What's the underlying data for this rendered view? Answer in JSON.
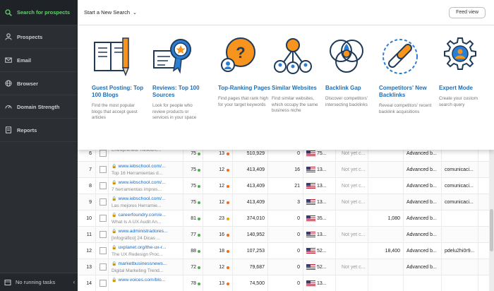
{
  "sidebar": {
    "items": [
      {
        "label": "Search for prospects",
        "icon": "search-icon",
        "active": true
      },
      {
        "label": "Prospects",
        "icon": "user-icon",
        "active": false
      },
      {
        "label": "Email",
        "icon": "mail-icon",
        "active": false
      },
      {
        "label": "Browser",
        "icon": "globe-icon",
        "active": false
      },
      {
        "label": "Domain Strength",
        "icon": "dashboard-icon",
        "active": false
      },
      {
        "label": "Reports",
        "icon": "report-icon",
        "active": false
      }
    ],
    "footer": "No running tasks",
    "accent_color": "#5fd36a"
  },
  "topbar": {
    "start_search": "Start a New Search",
    "feed_view": "Feed view"
  },
  "panel": {
    "cards": [
      {
        "title": "Guest Posting: Top 100 Blogs",
        "desc": "Find the most popular blogs that accept guest articles",
        "icon": "book-pencil-icon"
      },
      {
        "title": "Reviews: Top 100 Sources",
        "desc": "Look for people who review products or services in your space",
        "icon": "award-certificate-icon"
      },
      {
        "title": "Top-Ranking Pages",
        "desc": "Find pages that rank high for your target keywords",
        "icon": "question-user-icon"
      },
      {
        "title": "Similar Websites",
        "desc": "Find similar websites, which occupy the same business niche",
        "icon": "network-users-icon"
      },
      {
        "title": "Backlink Gap",
        "desc": "Discover competitors' intersecting backlinks",
        "icon": "venn-diagram-icon"
      },
      {
        "title": "Competitors' New Backlinks",
        "desc": "Reveal competitors' recent backlink acquisitions",
        "icon": "chain-link-icon"
      },
      {
        "title": "Expert Mode",
        "desc": "Create your custom search query",
        "icon": "gear-user-icon"
      }
    ]
  },
  "table": {
    "rows": [
      {
        "num": "6",
        "url": "",
        "title": "Entrepreneur Resourc...",
        "da": "75",
        "pa": "13",
        "pa_level": "high",
        "traffic": "510,929",
        "links": "0",
        "country": "75...",
        "status": "Not yet c...",
        "val": "",
        "search": "Advanced b...",
        "contact": ""
      },
      {
        "num": "7",
        "url": "www.iebschool.com/...",
        "title": "Top 16 Herramientas d...",
        "da": "75",
        "pa": "12",
        "pa_level": "high",
        "traffic": "413,409",
        "links": "16",
        "country": "13...",
        "status": "Not yet c...",
        "val": "",
        "search": "Advanced b...",
        "contact": "comunicaci..."
      },
      {
        "num": "8",
        "url": "www.iebschool.com/...",
        "title": "7 herramientas impres...",
        "da": "75",
        "pa": "12",
        "pa_level": "high",
        "traffic": "413,409",
        "links": "21",
        "country": "13...",
        "status": "Not yet c...",
        "val": "",
        "search": "Advanced b...",
        "contact": "comunicaci..."
      },
      {
        "num": "9",
        "url": "www.iebschool.com/...",
        "title": "Las mejores Herramie...",
        "da": "75",
        "pa": "12",
        "pa_level": "high",
        "traffic": "413,409",
        "links": "3",
        "country": "13...",
        "status": "Not yet c...",
        "val": "",
        "search": "Advanced b...",
        "contact": "comunicaci..."
      },
      {
        "num": "10",
        "url": "careerfoundry.com/e...",
        "title": "What Is A UX Audit An...",
        "da": "81",
        "pa": "23",
        "pa_level": "mid",
        "traffic": "374,010",
        "links": "0",
        "country": "35...",
        "status": "",
        "val": "1,080",
        "search": "Advanced b...",
        "contact": ""
      },
      {
        "num": "11",
        "url": "www.administradores...",
        "title": "[Infográfico] 24 Dicas ...",
        "da": "77",
        "pa": "16",
        "pa_level": "high",
        "traffic": "140,952",
        "links": "0",
        "country": "13...",
        "status": "Not yet c...",
        "val": "",
        "search": "Advanced b...",
        "contact": ""
      },
      {
        "num": "12",
        "url": "uxplanet.org/the-ux-r...",
        "title": "The UX Redesign Proc...",
        "da": "88",
        "pa": "18",
        "pa_level": "high",
        "traffic": "107,253",
        "links": "0",
        "country": "52...",
        "status": "",
        "val": "18,400",
        "search": "Advanced b...",
        "contact": "pdelu2hi0r9..."
      },
      {
        "num": "13",
        "url": "marketbusinessnews...",
        "title": "Digital Marketing Trend...",
        "da": "72",
        "pa": "12",
        "pa_level": "high",
        "traffic": "79,687",
        "links": "0",
        "country": "52...",
        "status": "Not yet c...",
        "val": "",
        "search": "Advanced b...",
        "contact": ""
      },
      {
        "num": "14",
        "url": "www.voices.com/blo...",
        "title": "",
        "da": "78",
        "pa": "13",
        "pa_level": "high",
        "traffic": "74,500",
        "links": "0",
        "country": "13...",
        "status": "",
        "val": "",
        "search": "",
        "contact": ""
      }
    ]
  }
}
